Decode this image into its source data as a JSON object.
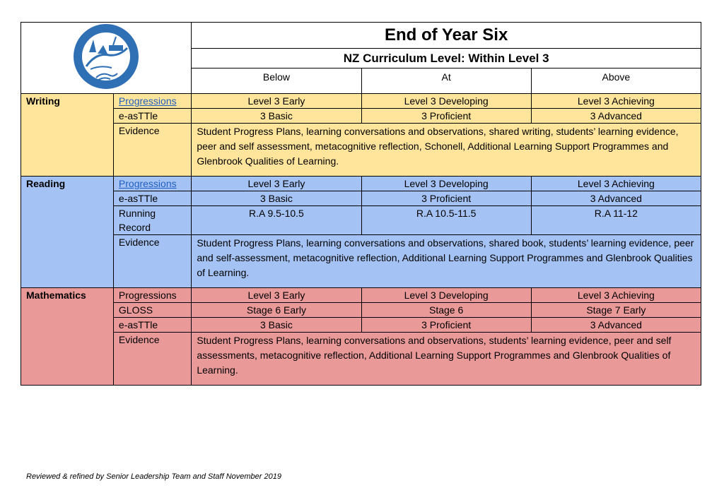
{
  "header": {
    "title": "End of Year Six",
    "subtitle": "NZ Curriculum Level: Within Level 3",
    "columns": [
      "Below",
      "At",
      "Above"
    ]
  },
  "writing": {
    "subject": "Writing",
    "progressions_label": "Progressions",
    "progressions": [
      "Level 3 Early",
      "Level 3 Developing",
      "Level 3 Achieving"
    ],
    "asttle_label": "e-asTTle",
    "asttle": [
      "3 Basic",
      "3 Proficient",
      "3 Advanced"
    ],
    "evidence_label": "Evidence",
    "evidence": "Student Progress Plans, learning conversations and observations, shared writing, students’ learning evidence, peer and self assessment, metacognitive reflection, Schonell, Additional Learning Support Programmes and Glenbrook Qualities of Learning."
  },
  "reading": {
    "subject": "Reading",
    "progressions_label": "Progressions",
    "progressions": [
      "Level 3 Early",
      "Level 3 Developing",
      "Level 3 Achieving"
    ],
    "asttle_label": "e-asTTle",
    "asttle": [
      "3 Basic",
      "3 Proficient",
      "3 Advanced"
    ],
    "running_record_label": "Running Record",
    "running_record": [
      "R.A 9.5-10.5",
      "R.A 10.5-11.5",
      "R.A 11-12"
    ],
    "evidence_label": "Evidence",
    "evidence": "Student Progress Plans, learning conversations and observations, shared book, students’ learning evidence, peer and self-assessment, metacognitive reflection, Additional Learning Support Programmes and Glenbrook Qualities of Learning."
  },
  "maths": {
    "subject": "Mathematics",
    "progressions_label": "Progressions",
    "progressions": [
      "Level 3 Early",
      "Level 3 Developing",
      "Level 3 Achieving"
    ],
    "gloss_label": "GLOSS",
    "gloss": [
      "Stage 6 Early",
      "Stage 6",
      "Stage 7 Early"
    ],
    "asttle_label": "e-asTTle",
    "asttle": [
      "3 Basic",
      "3 Proficient",
      "3 Advanced"
    ],
    "evidence_label": "Evidence",
    "evidence": "Student Progress Plans, learning conversations and observations, students’ learning evidence, peer and self assessments, metacognitive reflection, Additional Learning Support Programmes and Glenbrook Qualities of Learning."
  },
  "colors": {
    "writing": "#ffe49b",
    "reading": "#a4c2f4",
    "maths": "#ea9999",
    "link": "#1f5fbf",
    "logo": "#2f6fb4"
  },
  "footer": "Reviewed & refined by Senior Leadership Team and Staff November 2019"
}
